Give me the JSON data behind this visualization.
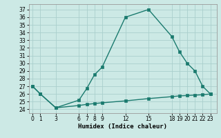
{
  "x_upper": [
    0,
    1,
    3,
    6,
    7,
    8,
    9,
    12,
    15,
    18,
    19,
    20,
    21,
    22,
    23
  ],
  "y_upper": [
    27,
    26,
    24.2,
    25.2,
    26.7,
    28.5,
    29.5,
    36,
    37,
    33.5,
    31.5,
    30,
    29,
    27,
    26
  ],
  "x_lower": [
    0,
    1,
    3,
    6,
    7,
    8,
    9,
    12,
    15,
    18,
    19,
    20,
    21,
    22,
    23
  ],
  "y_lower": [
    27,
    26,
    24.2,
    24.5,
    24.65,
    24.75,
    24.85,
    25.1,
    25.4,
    25.65,
    25.75,
    25.8,
    25.85,
    25.9,
    26
  ],
  "x_ticks": [
    0,
    1,
    3,
    6,
    7,
    8,
    9,
    12,
    15,
    18,
    19,
    20,
    21,
    22,
    23
  ],
  "y_ticks": [
    24,
    25,
    26,
    27,
    28,
    29,
    30,
    31,
    32,
    33,
    34,
    35,
    36,
    37
  ],
  "ylim": [
    23.5,
    37.7
  ],
  "xlim": [
    -0.5,
    23.8
  ],
  "xlabel": "Humidex (Indice chaleur)",
  "line_color": "#1a7a6e",
  "bg_color": "#cce9e5",
  "grid_color": "#aacfcc",
  "marker": "s",
  "marker_size": 2.5,
  "linewidth": 1.0,
  "tick_fontsize": 5.5,
  "xlabel_fontsize": 6.5
}
